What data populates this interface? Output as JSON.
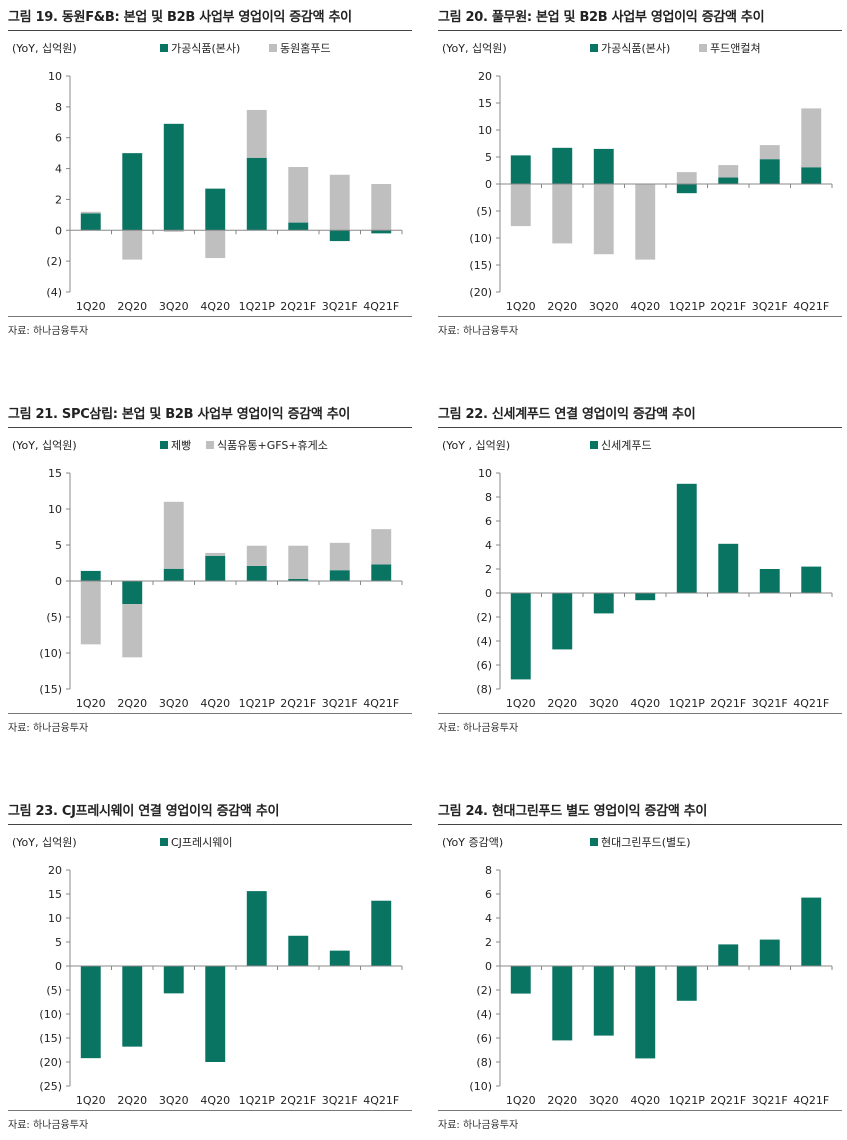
{
  "colors": {
    "primary": "#0a7463",
    "secondary": "#bfbfbf"
  },
  "source_label": "자료: 하나금융투자",
  "chart_data": [
    {
      "type": "bar",
      "stacked": true,
      "title": "그림 19. 동원F&B: 본업 및 B2B 사업부 영업이익 증감액 추이",
      "unit_label": "(YoY, 십억원)",
      "categories": [
        "1Q20",
        "2Q20",
        "3Q20",
        "4Q20",
        "1Q21P",
        "2Q21F",
        "3Q21F",
        "4Q21F"
      ],
      "series": [
        {
          "name": "가공식품(본사)",
          "color": "#0a7463",
          "values": [
            1.1,
            5.0,
            6.9,
            2.7,
            4.7,
            0.5,
            -0.7,
            -0.2
          ]
        },
        {
          "name": "동원홈푸드",
          "color": "#bfbfbf",
          "values": [
            0.1,
            -1.9,
            -0.1,
            -1.8,
            3.1,
            3.6,
            3.6,
            3.0
          ]
        }
      ],
      "ylim": [
        -4,
        10
      ],
      "yticks": [
        10,
        8,
        6,
        4,
        2,
        0,
        -2,
        -4
      ],
      "ytick_labels": [
        "10",
        "8",
        "6",
        "4",
        "2",
        "0",
        "(2)",
        "(4)"
      ],
      "legend": "top"
    },
    {
      "type": "bar",
      "stacked": true,
      "title": "그림 20. 풀무원: 본업 및 B2B 사업부 영업이익 증감액 추이",
      "unit_label": "(YoY, 십억원)",
      "categories": [
        "1Q20",
        "2Q20",
        "3Q20",
        "4Q20",
        "1Q21P",
        "2Q21F",
        "3Q21F",
        "4Q21F"
      ],
      "series": [
        {
          "name": "가공식품(본사)",
          "color": "#0a7463",
          "values": [
            5.3,
            6.7,
            6.5,
            0,
            -1.7,
            1.2,
            4.6,
            3.1
          ]
        },
        {
          "name": "푸드앤컬쳐",
          "color": "#bfbfbf",
          "values": [
            -7.8,
            -11.0,
            -13.0,
            -14.0,
            2.2,
            2.3,
            2.6,
            10.9
          ]
        }
      ],
      "ylim": [
        -20,
        20
      ],
      "yticks": [
        20,
        15,
        10,
        5,
        0,
        -5,
        -10,
        -15,
        -20
      ],
      "ytick_labels": [
        "20",
        "15",
        "10",
        "5",
        "0",
        "(5)",
        "(10)",
        "(15)",
        "(20)"
      ],
      "legend": "top"
    },
    {
      "type": "bar",
      "stacked": true,
      "title": "그림 21. SPC삼립: 본업 및 B2B 사업부 영업이익 증감액 추이",
      "unit_label": "(YoY, 십억원)",
      "categories": [
        "1Q20",
        "2Q20",
        "3Q20",
        "4Q20",
        "1Q21P",
        "2Q21F",
        "3Q21F",
        "4Q21F"
      ],
      "series": [
        {
          "name": "제빵",
          "color": "#0a7463",
          "values": [
            1.4,
            -3.2,
            1.7,
            3.5,
            2.1,
            0.3,
            1.5,
            2.3
          ]
        },
        {
          "name": "식품유통+GFS+휴게소",
          "color": "#bfbfbf",
          "values": [
            -8.8,
            -7.4,
            9.3,
            0.4,
            2.8,
            4.6,
            3.8,
            4.9
          ]
        }
      ],
      "ylim": [
        -15,
        15
      ],
      "yticks": [
        15,
        10,
        5,
        0,
        -5,
        -10,
        -15
      ],
      "ytick_labels": [
        "15",
        "10",
        "5",
        "0",
        "(5)",
        "(10)",
        "(15)"
      ],
      "legend": "top"
    },
    {
      "type": "bar",
      "stacked": false,
      "title": "그림 22. 신세계푸드 연결 영업이익 증감액 추이",
      "unit_label": "(YoY , 십억원)",
      "categories": [
        "1Q20",
        "2Q20",
        "3Q20",
        "4Q20",
        "1Q21P",
        "2Q21F",
        "3Q21F",
        "4Q21F"
      ],
      "series": [
        {
          "name": "신세계푸드",
          "color": "#0a7463",
          "values": [
            -7.2,
            -4.7,
            -1.7,
            -0.6,
            9.1,
            4.1,
            2.0,
            2.2
          ]
        }
      ],
      "ylim": [
        -8,
        10
      ],
      "yticks": [
        10,
        8,
        6,
        4,
        2,
        0,
        -2,
        -4,
        -6,
        -8
      ],
      "ytick_labels": [
        "10",
        "8",
        "6",
        "4",
        "2",
        "0",
        "(2)",
        "(4)",
        "(6)",
        "(8)"
      ],
      "legend": "top"
    },
    {
      "type": "bar",
      "stacked": false,
      "title": "그림 23. CJ프레시웨이 연결 영업이익 증감액 추이",
      "unit_label": "(YoY, 십억원)",
      "categories": [
        "1Q20",
        "2Q20",
        "3Q20",
        "4Q20",
        "1Q21P",
        "2Q21F",
        "3Q21F",
        "4Q21F"
      ],
      "series": [
        {
          "name": "CJ프레시웨이",
          "color": "#0a7463",
          "values": [
            -19.2,
            -16.8,
            -5.7,
            -20.0,
            15.6,
            6.3,
            3.2,
            13.6
          ]
        }
      ],
      "ylim": [
        -25,
        20
      ],
      "yticks": [
        20,
        15,
        10,
        5,
        0,
        -5,
        -10,
        -15,
        -20,
        -25
      ],
      "ytick_labels": [
        "20",
        "15",
        "10",
        "5",
        "0",
        "(5)",
        "(10)",
        "(15)",
        "(20)",
        "(25)"
      ],
      "legend": "top"
    },
    {
      "type": "bar",
      "stacked": false,
      "title": "그림 24. 현대그린푸드 별도 영업이익 증감액 추이",
      "unit_label": "(YoY 증감액)",
      "categories": [
        "1Q20",
        "2Q20",
        "3Q20",
        "4Q20",
        "1Q21P",
        "2Q21F",
        "3Q21F",
        "4Q21F"
      ],
      "series": [
        {
          "name": "현대그린푸드(별도)",
          "color": "#0a7463",
          "values": [
            -2.3,
            -6.2,
            -5.8,
            -7.7,
            -2.9,
            1.8,
            2.2,
            5.7
          ]
        }
      ],
      "ylim": [
        -10,
        8
      ],
      "yticks": [
        8,
        6,
        4,
        2,
        0,
        -2,
        -4,
        -6,
        -8,
        -10
      ],
      "ytick_labels": [
        "8",
        "6",
        "4",
        "2",
        "0",
        "(2)",
        "(4)",
        "(6)",
        "(8)",
        "(10)"
      ],
      "legend": "top"
    }
  ]
}
